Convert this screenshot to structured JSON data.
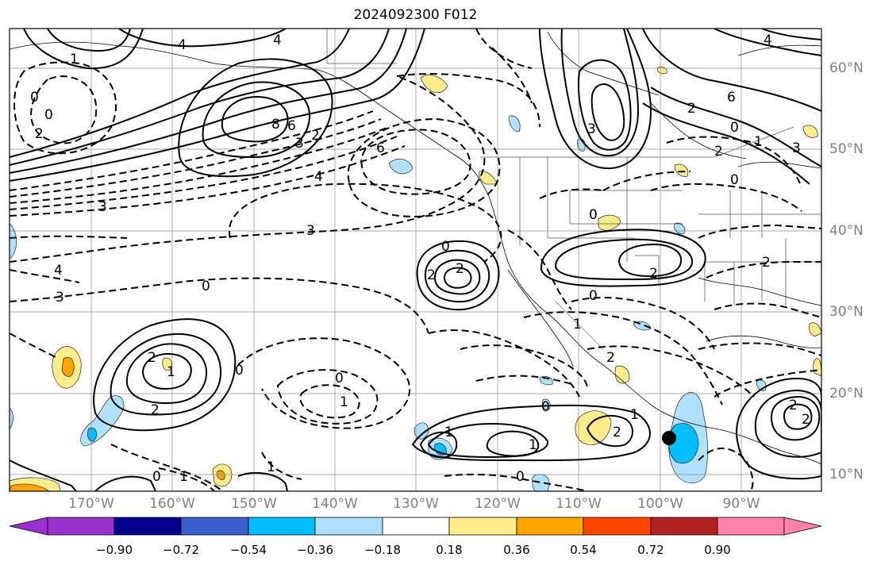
{
  "title": "2024092300 F012",
  "lon_labels": [
    "170°W",
    "160°W",
    "150°W",
    "140°W",
    "130°W",
    "120°W",
    "110°W",
    "100°W",
    "90°W"
  ],
  "lat_labels": [
    "60°N",
    "50°N",
    "40°N",
    "30°N",
    "20°N",
    "10°N"
  ],
  "colorbar": {
    "ticks": [
      "−0.90",
      "−0.72",
      "−0.54",
      "−0.36",
      "−0.18",
      "0.18",
      "0.36",
      "0.54",
      "0.72",
      "0.90"
    ],
    "colors": [
      "#9932cc",
      "#00008b",
      "#3a5fcd",
      "#00bfff",
      "#b0e2ff",
      "#ffffff",
      "#ffec8b",
      "#ffa500",
      "#ff4500",
      "#b22222",
      "#ff82ab"
    ]
  },
  "contour_labels": [
    "4",
    "4",
    "1",
    "0",
    "2",
    "8",
    "6",
    "2",
    "3",
    "4",
    "0",
    "6",
    "3",
    "2",
    "4",
    "6",
    "3",
    "2",
    "0",
    "3",
    "1",
    "0",
    "2",
    "2",
    "0",
    "2",
    "3",
    "0",
    "4",
    "3",
    "0",
    "2",
    "2",
    "1",
    "2",
    "2",
    "0",
    "0",
    "1",
    "1",
    "0",
    "1",
    "1",
    "2",
    "1",
    "0",
    "0",
    "2",
    "2",
    "0",
    "1",
    "1"
  ],
  "marker": {
    "lon": "98.7°W",
    "lat": "14.5°N"
  }
}
